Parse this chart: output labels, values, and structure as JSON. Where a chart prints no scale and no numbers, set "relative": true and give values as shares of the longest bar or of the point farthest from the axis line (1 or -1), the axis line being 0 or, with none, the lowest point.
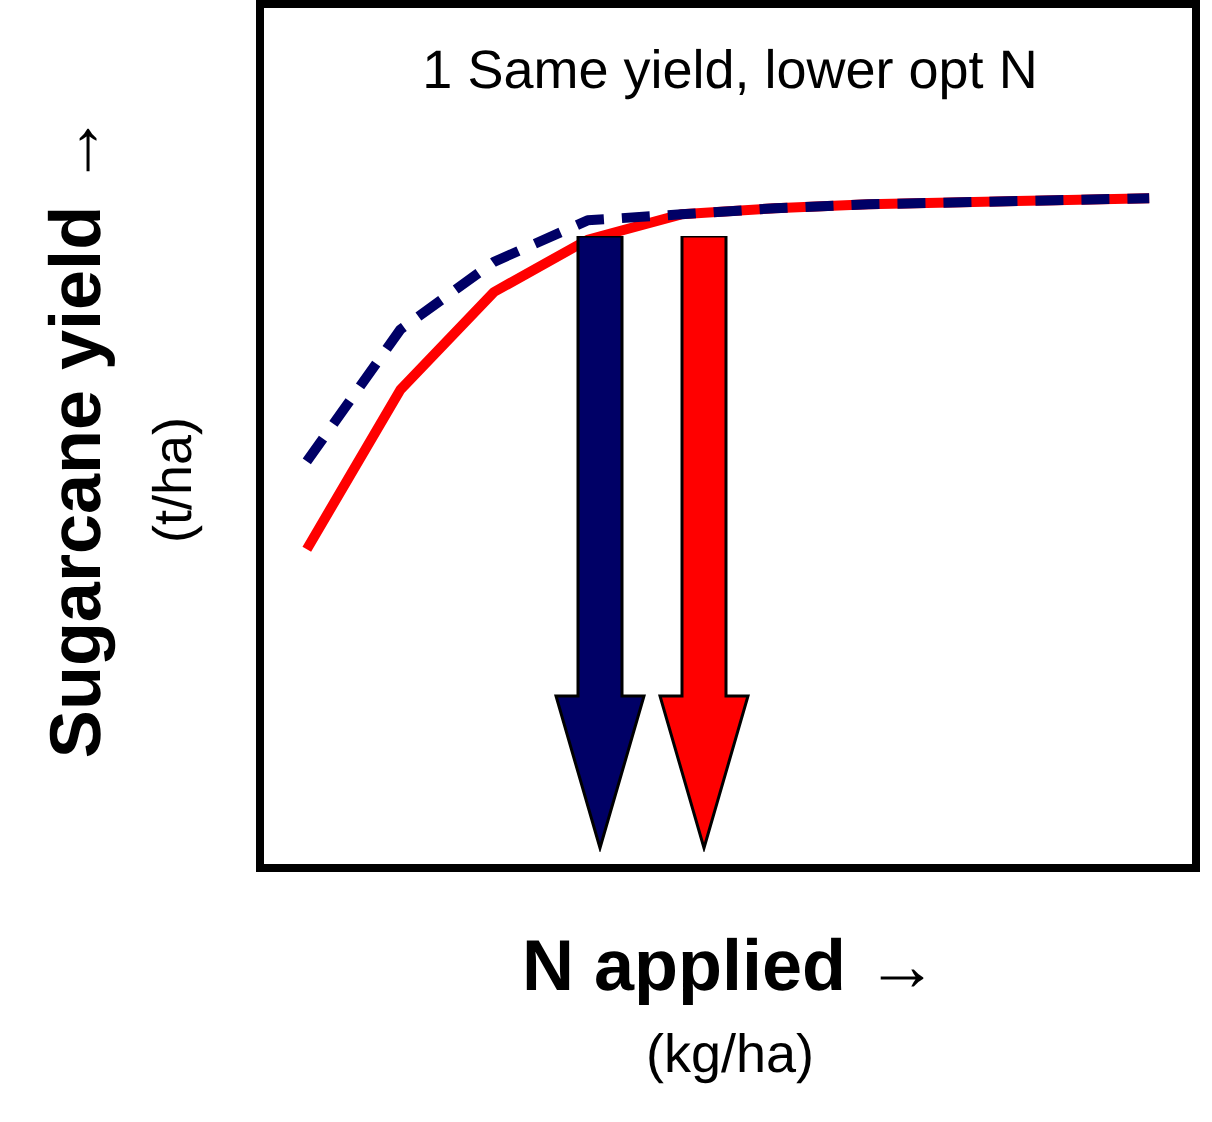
{
  "chart_data": {
    "type": "line",
    "relative": true,
    "xlabel": "N applied →",
    "ylabel": "Sugarcane yield →",
    "annotations": [
      "1 Same yield, lower opt N",
      "(kg/ha)",
      "(t/ha)"
    ],
    "categories": [
      null,
      null,
      null,
      null,
      null,
      null,
      null,
      null,
      null,
      null
    ],
    "series": [
      {
        "color": "#ff0000",
        "line_style": "solid",
        "values": [
          0.476,
          0.714,
          0.86,
          0.938,
          0.976,
          0.985,
          0.991,
          0.994,
          0.997,
          1
        ]
      },
      {
        "color": "#000066",
        "line_style": "dashed",
        "values": [
          0.607,
          0.804,
          0.905,
          0.967,
          0.976,
          0.985,
          0.991,
          0.994,
          0.997,
          1
        ]
      }
    ],
    "grid": false,
    "legend": false,
    "marker": "none"
  }
}
